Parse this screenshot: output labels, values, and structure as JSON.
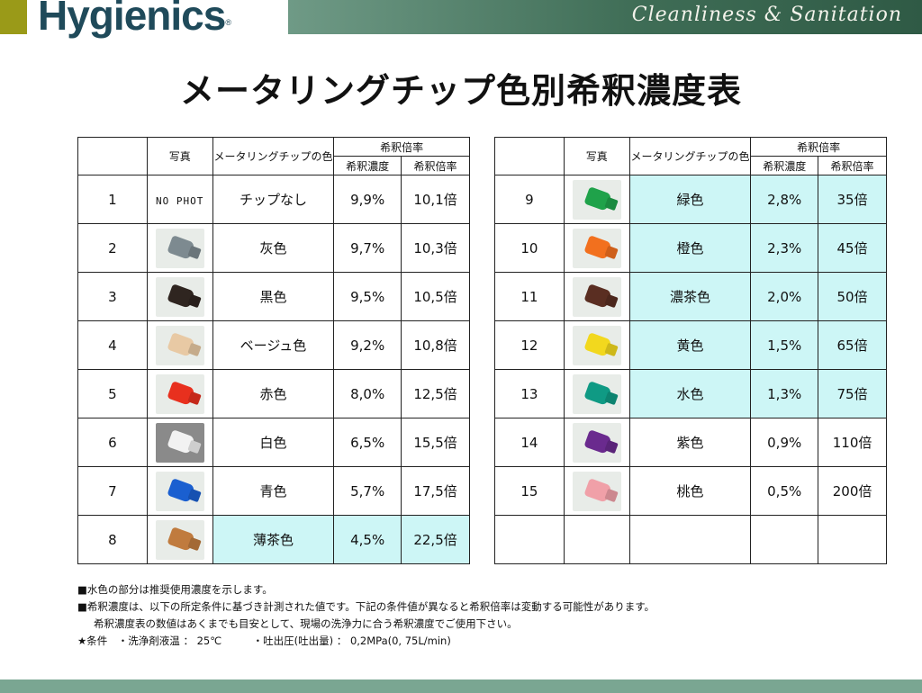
{
  "header": {
    "logo": "Hygi",
    "logo_mark": "e",
    "logo_rest": "nics",
    "logo_reg": "®",
    "tagline": "Cleanliness  &  Sanitation"
  },
  "title": "メータリングチップ色別希釈濃度表",
  "table_headers": {
    "no": "",
    "photo": "写真",
    "color": "メータリングチップの色",
    "group": "希釈倍率",
    "conc": "希釈濃度",
    "ratio": "希釈倍率"
  },
  "left_rows": [
    {
      "no": "1",
      "photo_text": "NO PHOT",
      "photo_color": "",
      "color": "チップなし",
      "conc": "9,9%",
      "ratio": "10,1倍",
      "highlight": false
    },
    {
      "no": "2",
      "photo_text": "",
      "photo_color": "#7d8a90",
      "color": "灰色",
      "conc": "9,7%",
      "ratio": "10,3倍",
      "highlight": false
    },
    {
      "no": "3",
      "photo_text": "",
      "photo_color": "#2f2520",
      "color": "黒色",
      "conc": "9,5%",
      "ratio": "10,5倍",
      "highlight": false
    },
    {
      "no": "4",
      "photo_text": "",
      "photo_color": "#e8c9a4",
      "color": "ベージュ色",
      "conc": "9,2%",
      "ratio": "10,8倍",
      "highlight": false
    },
    {
      "no": "5",
      "photo_text": "",
      "photo_color": "#e8301e",
      "color": "赤色",
      "conc": "8,0%",
      "ratio": "12,5倍",
      "highlight": false
    },
    {
      "no": "6",
      "photo_text": "",
      "photo_color": "#f2f2f2",
      "color": "白色",
      "conc": "6,5%",
      "ratio": "15,5倍",
      "highlight": false
    },
    {
      "no": "7",
      "photo_text": "",
      "photo_color": "#1a5fd0",
      "color": "青色",
      "conc": "5,7%",
      "ratio": "17,5倍",
      "highlight": false
    },
    {
      "no": "8",
      "photo_text": "",
      "photo_color": "#c07b3e",
      "color": "薄茶色",
      "conc": "4,5%",
      "ratio": "22,5倍",
      "highlight": true
    }
  ],
  "right_rows": [
    {
      "no": "9",
      "photo_color": "#1fa24a",
      "color": "緑色",
      "conc": "2,8%",
      "ratio": "35倍",
      "highlight": true
    },
    {
      "no": "10",
      "photo_color": "#f2701e",
      "color": "橙色",
      "conc": "2,3%",
      "ratio": "45倍",
      "highlight": true
    },
    {
      "no": "11",
      "photo_color": "#5a2e22",
      "color": "濃茶色",
      "conc": "2,0%",
      "ratio": "50倍",
      "highlight": true
    },
    {
      "no": "12",
      "photo_color": "#f2d81e",
      "color": "黄色",
      "conc": "1,5%",
      "ratio": "65倍",
      "highlight": true
    },
    {
      "no": "13",
      "photo_color": "#0f9a84",
      "color": "水色",
      "conc": "1,3%",
      "ratio": "75倍",
      "highlight": true
    },
    {
      "no": "14",
      "photo_color": "#6a2a8e",
      "color": "紫色",
      "conc": "0,9%",
      "ratio": "110倍",
      "highlight": false
    },
    {
      "no": "15",
      "photo_color": "#f0a0a8",
      "color": "桃色",
      "conc": "0,5%",
      "ratio": "200倍",
      "highlight": false
    },
    {
      "no": "",
      "photo_color": "",
      "color": "",
      "conc": "",
      "ratio": "",
      "highlight": false
    }
  ],
  "notes": [
    "■水色の部分は推奨使用濃度を示します。",
    "■希釈濃度は、以下の所定条件に基づき計測された値です。下記の条件値が異なると希釈倍率は変動する可能性があります。",
    "希釈濃度表の数値はあくまでも目安として、現場の洗浄力に合う希釈濃度でご使用下さい。",
    "★条件　・洗浄剤液温 ： 25℃　　　・吐出圧(吐出量) ： 0,2MPa(0, 75L/min)"
  ]
}
